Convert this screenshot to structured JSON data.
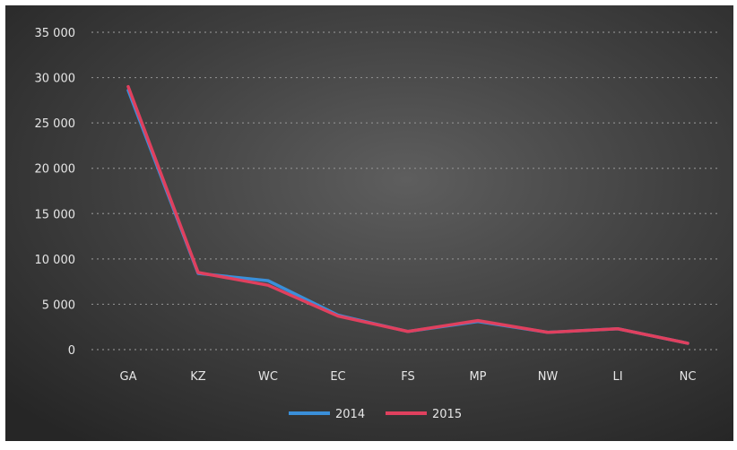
{
  "chart_data": {
    "type": "line",
    "categories": [
      "GA",
      "KZ",
      "WC",
      "EC",
      "FS",
      "MP",
      "NW",
      "LI",
      "NC"
    ],
    "series": [
      {
        "name": "2014",
        "color": "#3a8fd9",
        "values": [
          28600,
          8400,
          7600,
          3800,
          2000,
          3100,
          1900,
          2300,
          700
        ]
      },
      {
        "name": "2015",
        "color": "#e0405e",
        "values": [
          29000,
          8500,
          7100,
          3700,
          2000,
          3200,
          1900,
          2300,
          700
        ]
      }
    ],
    "y_ticks": [
      "0",
      "5 000",
      "10 000",
      "15 000",
      "20 000",
      "25 000",
      "30 000",
      "35 000"
    ],
    "ylim": [
      0,
      35000
    ],
    "grid": true,
    "legend": "bottom"
  }
}
